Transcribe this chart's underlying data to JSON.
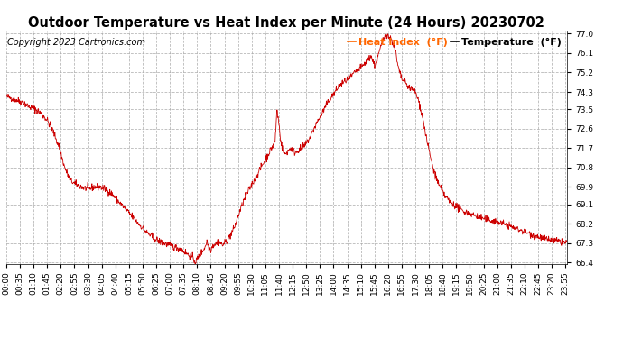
{
  "title": "Outdoor Temperature vs Heat Index per Minute (24 Hours) 20230702",
  "copyright": "Copyright 2023 Cartronics.com",
  "legend_heat": "Heat Index  (°F)",
  "legend_temp": "Temperature  (°F)",
  "bg_color": "#ffffff",
  "grid_color": "#aaaaaa",
  "line_color": "#cc0000",
  "legend_heat_color": "#ff6600",
  "legend_temp_color": "#000000",
  "title_fontsize": 10.5,
  "tick_fontsize": 6.5,
  "legend_fontsize": 8,
  "copyright_fontsize": 7,
  "ylim_min": 66.4,
  "ylim_max": 77.0,
  "yticks": [
    66.4,
    67.3,
    68.2,
    69.1,
    69.9,
    70.8,
    71.7,
    72.6,
    73.5,
    74.3,
    75.2,
    76.1,
    77.0
  ],
  "waypoints": [
    [
      0.0,
      74.1
    ],
    [
      0.25,
      74.0
    ],
    [
      0.5,
      73.9
    ],
    [
      0.75,
      73.8
    ],
    [
      1.0,
      73.6
    ],
    [
      1.25,
      73.5
    ],
    [
      1.5,
      73.3
    ],
    [
      1.75,
      73.0
    ],
    [
      2.0,
      72.5
    ],
    [
      2.25,
      71.8
    ],
    [
      2.5,
      70.8
    ],
    [
      2.75,
      70.2
    ],
    [
      3.0,
      70.0
    ],
    [
      3.25,
      69.9
    ],
    [
      3.5,
      69.8
    ],
    [
      3.75,
      69.9
    ],
    [
      4.0,
      69.9
    ],
    [
      4.25,
      69.8
    ],
    [
      4.5,
      69.6
    ],
    [
      4.75,
      69.3
    ],
    [
      5.0,
      69.0
    ],
    [
      5.25,
      68.7
    ],
    [
      5.5,
      68.4
    ],
    [
      5.75,
      68.1
    ],
    [
      6.0,
      67.8
    ],
    [
      6.25,
      67.6
    ],
    [
      6.5,
      67.4
    ],
    [
      6.75,
      67.3
    ],
    [
      7.0,
      67.2
    ],
    [
      7.25,
      67.1
    ],
    [
      7.5,
      67.0
    ],
    [
      7.75,
      66.8
    ],
    [
      8.0,
      66.6
    ],
    [
      8.083,
      66.4
    ],
    [
      8.25,
      66.7
    ],
    [
      8.5,
      67.1
    ],
    [
      8.583,
      67.4
    ],
    [
      8.667,
      67.1
    ],
    [
      8.75,
      67.0
    ],
    [
      8.833,
      67.2
    ],
    [
      9.0,
      67.3
    ],
    [
      9.083,
      67.4
    ],
    [
      9.167,
      67.3
    ],
    [
      9.25,
      67.2
    ],
    [
      9.5,
      67.5
    ],
    [
      9.75,
      68.0
    ],
    [
      10.0,
      68.8
    ],
    [
      10.25,
      69.5
    ],
    [
      10.5,
      70.0
    ],
    [
      10.75,
      70.5
    ],
    [
      11.0,
      71.0
    ],
    [
      11.25,
      71.5
    ],
    [
      11.5,
      72.0
    ],
    [
      11.583,
      73.5
    ],
    [
      11.667,
      72.8
    ],
    [
      11.75,
      72.0
    ],
    [
      11.833,
      71.6
    ],
    [
      11.917,
      71.4
    ],
    [
      12.0,
      71.5
    ],
    [
      12.083,
      71.6
    ],
    [
      12.167,
      71.7
    ],
    [
      12.25,
      71.65
    ],
    [
      12.333,
      71.5
    ],
    [
      12.5,
      71.6
    ],
    [
      12.667,
      71.7
    ],
    [
      12.75,
      71.8
    ],
    [
      13.0,
      72.2
    ],
    [
      13.25,
      72.8
    ],
    [
      13.5,
      73.3
    ],
    [
      13.75,
      73.8
    ],
    [
      14.0,
      74.2
    ],
    [
      14.25,
      74.6
    ],
    [
      14.5,
      74.8
    ],
    [
      14.75,
      75.0
    ],
    [
      15.0,
      75.3
    ],
    [
      15.25,
      75.5
    ],
    [
      15.5,
      75.8
    ],
    [
      15.583,
      76.0
    ],
    [
      15.667,
      75.8
    ],
    [
      15.75,
      75.5
    ],
    [
      15.833,
      75.7
    ],
    [
      15.917,
      76.0
    ],
    [
      16.0,
      76.3
    ],
    [
      16.083,
      76.6
    ],
    [
      16.167,
      76.8
    ],
    [
      16.25,
      77.0
    ],
    [
      16.333,
      76.9
    ],
    [
      16.417,
      76.8
    ],
    [
      16.5,
      76.7
    ],
    [
      16.583,
      76.4
    ],
    [
      16.667,
      76.1
    ],
    [
      16.75,
      75.5
    ],
    [
      16.833,
      75.2
    ],
    [
      16.917,
      74.9
    ],
    [
      17.0,
      74.8
    ],
    [
      17.25,
      74.5
    ],
    [
      17.5,
      74.3
    ],
    [
      17.667,
      73.8
    ],
    [
      17.833,
      73.0
    ],
    [
      18.0,
      72.0
    ],
    [
      18.25,
      70.8
    ],
    [
      18.5,
      70.0
    ],
    [
      18.75,
      69.5
    ],
    [
      19.0,
      69.2
    ],
    [
      19.25,
      69.0
    ],
    [
      19.5,
      68.8
    ],
    [
      19.75,
      68.7
    ],
    [
      20.0,
      68.6
    ],
    [
      20.25,
      68.5
    ],
    [
      20.5,
      68.4
    ],
    [
      20.75,
      68.35
    ],
    [
      21.0,
      68.3
    ],
    [
      21.25,
      68.2
    ],
    [
      21.5,
      68.1
    ],
    [
      21.75,
      68.0
    ],
    [
      22.0,
      67.9
    ],
    [
      22.25,
      67.8
    ],
    [
      22.5,
      67.7
    ],
    [
      22.75,
      67.6
    ],
    [
      23.0,
      67.5
    ],
    [
      23.25,
      67.45
    ],
    [
      23.5,
      67.4
    ],
    [
      23.75,
      67.35
    ],
    [
      24.0,
      67.3
    ]
  ]
}
